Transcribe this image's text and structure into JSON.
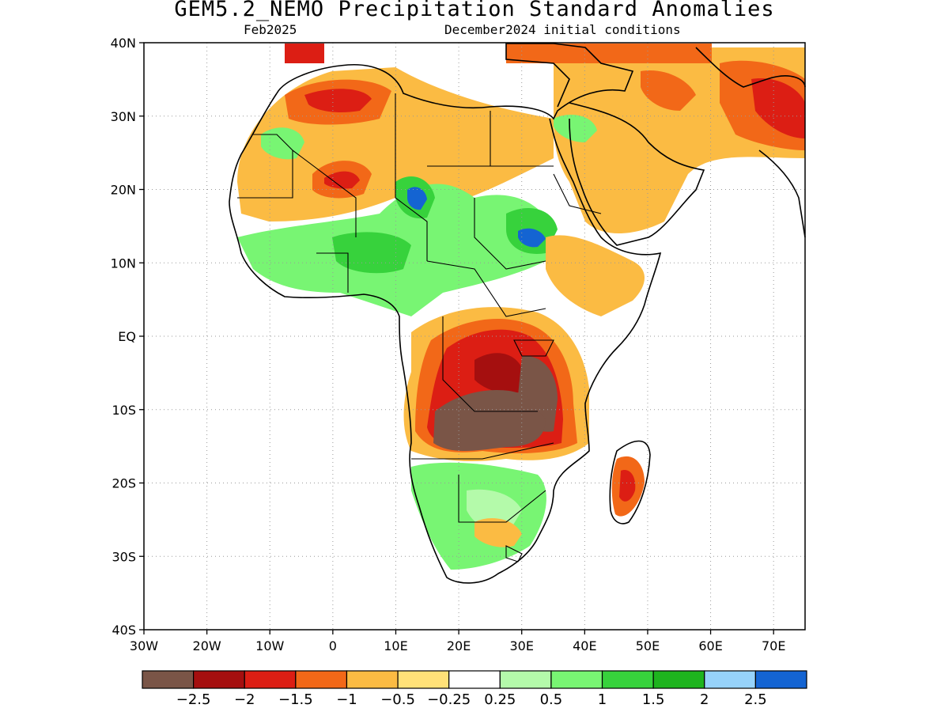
{
  "title": "GEM5.2_NEMO Precipitation Standard Anomalies",
  "subtitle_left": "Feb2025",
  "subtitle_right": "December2024 initial conditions",
  "map": {
    "lon_range": [
      -30,
      75
    ],
    "lat_range": [
      -40,
      40
    ],
    "lat_ticks": [
      "40N",
      "30N",
      "20N",
      "10N",
      "EQ",
      "10S",
      "20S",
      "30S",
      "40S"
    ],
    "lon_ticks": [
      "30W",
      "20W",
      "10W",
      "0",
      "10E",
      "20E",
      "30E",
      "40E",
      "50E",
      "60E",
      "70E"
    ],
    "grid": "dotted"
  },
  "colorbar": {
    "colors": [
      "#7a5547",
      "#a50f0f",
      "#dc1e14",
      "#f26818",
      "#fbbb43",
      "#ffe178",
      "#ffffff",
      "#b4faaa",
      "#78f573",
      "#37d23c",
      "#1eb41e",
      "#96d2fa",
      "#1464d2"
    ],
    "labels": [
      "−2.5",
      "−2",
      "−1.5",
      "−1",
      "−0.5",
      "−0.25",
      "0.25",
      "0.5",
      "1",
      "1.5",
      "2",
      "2.5"
    ]
  }
}
